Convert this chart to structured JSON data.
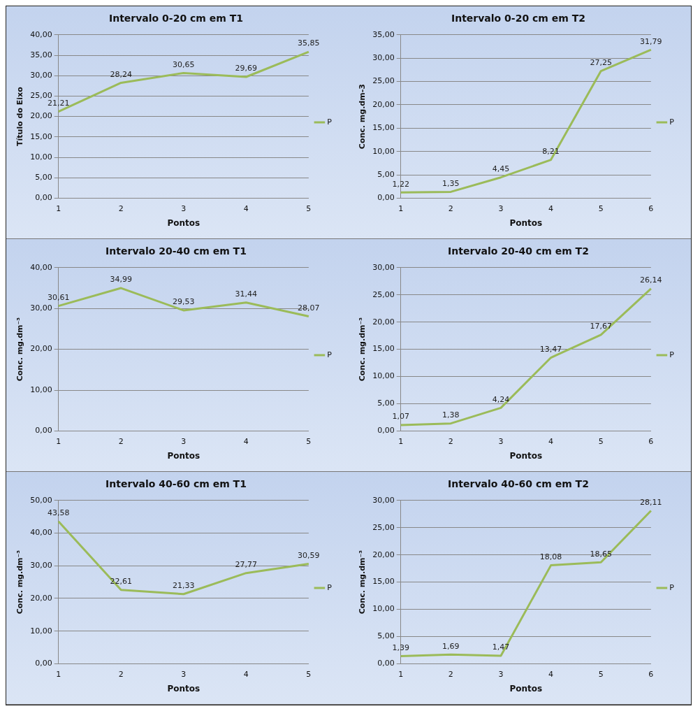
{
  "chart_data": [
    {
      "type": "line",
      "title": "Intervalo 0-20 cm em T1",
      "xlabel": "Pontos",
      "ylabel": "Título do Eixo",
      "categories": [
        "1",
        "2",
        "3",
        "4",
        "5"
      ],
      "series": [
        {
          "name": "P",
          "color": "#9bbb59",
          "values": [
            21.21,
            28.24,
            30.65,
            29.69,
            35.85
          ],
          "value_labels": [
            "21,21",
            "28,24",
            "30,65",
            "29,69",
            "35,85"
          ]
        }
      ],
      "ylim": [
        0,
        40
      ],
      "yticks": [
        {
          "value": 0,
          "label": "0,00"
        },
        {
          "value": 5,
          "label": "5,00"
        },
        {
          "value": 10,
          "label": "10,00"
        },
        {
          "value": 15,
          "label": "15,00"
        },
        {
          "value": 20,
          "label": "20,00"
        },
        {
          "value": 25,
          "label": "25,00"
        },
        {
          "value": 30,
          "label": "30,00"
        },
        {
          "value": 35,
          "label": "35,00"
        },
        {
          "value": 40,
          "label": "40,00"
        }
      ],
      "grid": "y",
      "legend": "right",
      "marker": "none"
    },
    {
      "type": "line",
      "title": "Intervalo 0-20 cm em T2",
      "xlabel": "Pontos",
      "ylabel": "Conc. mg.dm-3",
      "categories": [
        "1",
        "2",
        "3",
        "4",
        "5",
        "6"
      ],
      "series": [
        {
          "name": "P",
          "color": "#9bbb59",
          "values": [
            1.22,
            1.35,
            4.45,
            8.21,
            27.25,
            31.79
          ],
          "value_labels": [
            "1,22",
            "1,35",
            "4,45",
            "8,21",
            "27,25",
            "31,79"
          ]
        }
      ],
      "ylim": [
        0,
        35
      ],
      "yticks": [
        {
          "value": 0,
          "label": "0,00"
        },
        {
          "value": 5,
          "label": "5,00"
        },
        {
          "value": 10,
          "label": "10,00"
        },
        {
          "value": 15,
          "label": "15,00"
        },
        {
          "value": 20,
          "label": "20,00"
        },
        {
          "value": 25,
          "label": "25,00"
        },
        {
          "value": 30,
          "label": "30,00"
        },
        {
          "value": 35,
          "label": "35,00"
        }
      ],
      "grid": "y",
      "legend": "right",
      "marker": "none"
    },
    {
      "type": "line",
      "title": "Intervalo 20-40 cm em T1",
      "xlabel": "Pontos",
      "ylabel": "Conc. mg.dm⁻³",
      "categories": [
        "1",
        "2",
        "3",
        "4",
        "5"
      ],
      "series": [
        {
          "name": "P",
          "color": "#9bbb59",
          "values": [
            30.61,
            34.99,
            29.53,
            31.44,
            28.07
          ],
          "value_labels": [
            "30,61",
            "34,99",
            "29,53",
            "31,44",
            "28,07"
          ]
        }
      ],
      "ylim": [
        0,
        40
      ],
      "yticks": [
        {
          "value": 0,
          "label": "0,00"
        },
        {
          "value": 10,
          "label": "10,00"
        },
        {
          "value": 20,
          "label": "20,00"
        },
        {
          "value": 30,
          "label": "30,00"
        },
        {
          "value": 40,
          "label": "40,00"
        }
      ],
      "grid": "y",
      "legend": "right",
      "marker": "none"
    },
    {
      "type": "line",
      "title": "Intervalo 20-40 cm em T2",
      "xlabel": "Pontos",
      "ylabel": "Conc. mg.dm⁻³",
      "categories": [
        "1",
        "2",
        "3",
        "4",
        "5",
        "6"
      ],
      "series": [
        {
          "name": "P",
          "color": "#9bbb59",
          "values": [
            1.07,
            1.38,
            4.24,
            13.47,
            17.67,
            26.14
          ],
          "value_labels": [
            "1,07",
            "1,38",
            "4,24",
            "13,47",
            "17,67",
            "26,14"
          ]
        }
      ],
      "ylim": [
        0,
        30
      ],
      "yticks": [
        {
          "value": 0,
          "label": "0,00"
        },
        {
          "value": 5,
          "label": "5,00"
        },
        {
          "value": 10,
          "label": "10,00"
        },
        {
          "value": 15,
          "label": "15,00"
        },
        {
          "value": 20,
          "label": "20,00"
        },
        {
          "value": 25,
          "label": "25,00"
        },
        {
          "value": 30,
          "label": "30,00"
        }
      ],
      "grid": "y",
      "legend": "right",
      "marker": "none"
    },
    {
      "type": "line",
      "title": "Intervalo 40-60 cm em T1",
      "xlabel": "Pontos",
      "ylabel": "Conc. mg.dm⁻³",
      "categories": [
        "1",
        "2",
        "3",
        "4",
        "5"
      ],
      "series": [
        {
          "name": "P",
          "color": "#9bbb59",
          "values": [
            43.58,
            22.61,
            21.33,
            27.77,
            30.59
          ],
          "value_labels": [
            "43,58",
            "22,61",
            "21,33",
            "27,77",
            "30,59"
          ]
        }
      ],
      "ylim": [
        0,
        50
      ],
      "yticks": [
        {
          "value": 0,
          "label": "0,00"
        },
        {
          "value": 10,
          "label": "10,00"
        },
        {
          "value": 20,
          "label": "20,00"
        },
        {
          "value": 30,
          "label": "30,00"
        },
        {
          "value": 40,
          "label": "40,00"
        },
        {
          "value": 50,
          "label": "50,00"
        }
      ],
      "grid": "y",
      "legend": "right",
      "marker": "none"
    },
    {
      "type": "line",
      "title": "Intervalo 40-60 cm em T2",
      "xlabel": "Pontos",
      "ylabel": "Conc. mg.dm⁻³",
      "categories": [
        "1",
        "2",
        "3",
        "4",
        "5",
        "6"
      ],
      "series": [
        {
          "name": "P",
          "color": "#9bbb59",
          "values": [
            1.39,
            1.69,
            1.47,
            18.08,
            18.65,
            28.11
          ],
          "value_labels": [
            "1,39",
            "1,69",
            "1,47",
            "18,08",
            "18,65",
            "28,11"
          ]
        }
      ],
      "ylim": [
        0,
        30
      ],
      "yticks": [
        {
          "value": 0,
          "label": "0,00"
        },
        {
          "value": 5,
          "label": "5,00"
        },
        {
          "value": 10,
          "label": "10,00"
        },
        {
          "value": 15,
          "label": "15,00"
        },
        {
          "value": 20,
          "label": "20,00"
        },
        {
          "value": 25,
          "label": "25,00"
        },
        {
          "value": 30,
          "label": "30,00"
        }
      ],
      "grid": "y",
      "legend": "right",
      "marker": "none"
    }
  ]
}
